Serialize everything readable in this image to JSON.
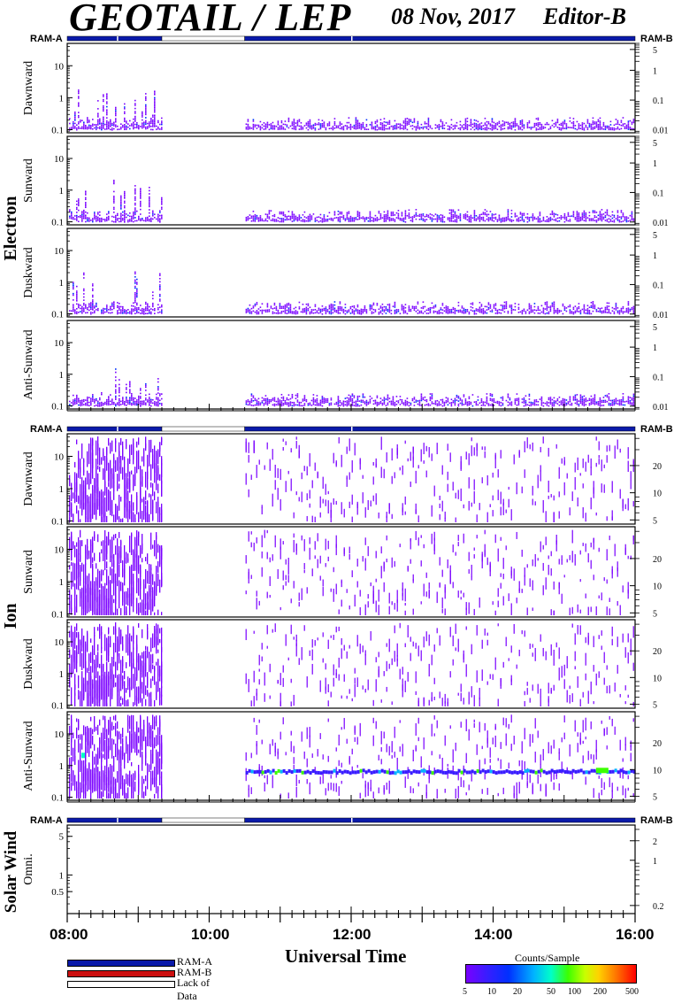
{
  "header": {
    "title": "GEOTAIL / LEP",
    "date": "08 Nov, 2017",
    "editor": "Editor-B"
  },
  "chart_data": {
    "type": "heatmap",
    "xlabel": "Universal Time",
    "x_ticks": [
      "08:00",
      "10:00",
      "12:00",
      "14:00",
      "16:00"
    ],
    "xlim": [
      "08:00",
      "16:00"
    ],
    "data_gap": [
      "09:20",
      "10:30"
    ],
    "groups": [
      {
        "name": "Electron",
        "ram_left": "RAM-A",
        "ram_right": "RAM-B",
        "panels": [
          {
            "label": "Dawnward",
            "y_ticks": [
              "10",
              "1",
              "0.1"
            ],
            "y2_ticks": [
              "5",
              "1",
              "0.1",
              "0.01"
            ]
          },
          {
            "label": "Sunward",
            "y_ticks": [
              "10",
              "1",
              "0.1"
            ],
            "y2_ticks": [
              "5",
              "1",
              "0.1",
              "0.01"
            ]
          },
          {
            "label": "Duskward",
            "y_ticks": [
              "10",
              "1",
              "0.1"
            ],
            "y2_ticks": [
              "5",
              "1",
              "0.1",
              "0.01"
            ]
          },
          {
            "label": "Anti-Sunward",
            "y_ticks": [
              "10",
              "1",
              "0.1"
            ],
            "y2_ticks": [
              "5",
              "1",
              "0.1",
              "0.01"
            ]
          }
        ]
      },
      {
        "name": "Ion",
        "ram_left": "RAM-A",
        "ram_right": "RAM-B",
        "panels": [
          {
            "label": "Dawnward",
            "y_ticks": [
              "10",
              "1",
              "0.1"
            ],
            "y2_ticks": [
              "20",
              "10",
              "5"
            ]
          },
          {
            "label": "Sunward",
            "y_ticks": [
              "10",
              "1",
              "0.1"
            ],
            "y2_ticks": [
              "20",
              "10",
              "5"
            ]
          },
          {
            "label": "Duskward",
            "y_ticks": [
              "10",
              "1",
              "0.1"
            ],
            "y2_ticks": [
              "20",
              "10",
              "5"
            ]
          },
          {
            "label": "Anti-Sunward",
            "y_ticks": [
              "10",
              "1",
              "0.1"
            ],
            "y2_ticks": [
              "20",
              "10",
              "5"
            ]
          }
        ]
      },
      {
        "name": "Solar Wind",
        "ram_left": "RAM-A",
        "ram_right": "RAM-B",
        "panels": [
          {
            "label": "Omni.",
            "y_ticks": [
              "5",
              "1",
              "0.5"
            ],
            "y2_ticks": [
              "2",
              "1",
              "0.2"
            ]
          }
        ]
      }
    ],
    "status_legend": [
      {
        "label": "RAM-A",
        "color": "#0a1aaa"
      },
      {
        "label": "RAM-B",
        "color": "#cc1010"
      },
      {
        "label": "Lack of Data",
        "color": "#ffffff"
      }
    ],
    "colorbar": {
      "title": "Counts/Sample",
      "ticks": [
        "5",
        "10",
        "20",
        "50",
        "100",
        "200",
        "500"
      ]
    }
  }
}
